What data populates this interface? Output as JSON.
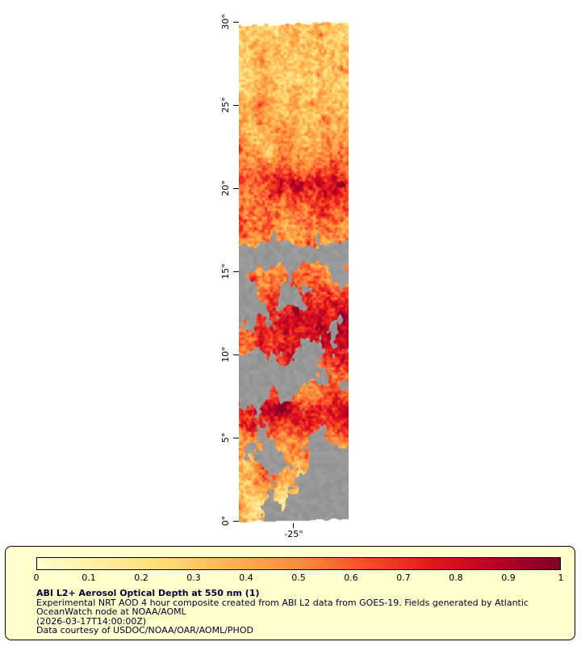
{
  "chart_data": {
    "type": "heatmap",
    "title": "ABI L2+ Aerosol Optical Depth at 550 nm (1)",
    "x_axis_ticks": [
      "-25°"
    ],
    "y_axis_ticks_top_to_bottom": [
      "30°",
      "25°",
      "20°",
      "15°",
      "10°",
      "5°",
      "0°"
    ],
    "colorbar": {
      "min": 0,
      "max": 1,
      "ticks": [
        "0",
        "0.1",
        "0.2",
        "0.3",
        "0.4",
        "0.5",
        "0.6",
        "0.7",
        "0.8",
        "0.9",
        "1"
      ]
    }
  },
  "map": {
    "y_axis_ticks": [
      "30°",
      "25°",
      "20°",
      "15°",
      "10°",
      "5°",
      "0°"
    ],
    "x_axis_tick": "-25°"
  },
  "colorbar": {
    "tick_labels": [
      "0",
      "0.1",
      "0.2",
      "0.3",
      "0.4",
      "0.5",
      "0.6",
      "0.7",
      "0.8",
      "0.9",
      "1"
    ],
    "gradient_stops": [
      "#ffffcc",
      "#ffeda0",
      "#fed976",
      "#feb24c",
      "#fd8d3c",
      "#fc4e2a",
      "#e31a1c",
      "#bd0026",
      "#800026"
    ]
  },
  "colors": {
    "panel_bg": "#ffffcc",
    "panel_border": "#000000",
    "caption_text": "#000033",
    "no_data_gray": "#9e9e9e",
    "page_bg": "#ffffff"
  },
  "caption": {
    "title": "ABI L2+ Aerosol Optical Depth at 550 nm (1)",
    "description_line1": "Experimental NRT AOD 4 hour composite created from ABI L2 data from GOES-19. Fields generated by Atlantic",
    "description_line2": "OceanWatch node at NOAA/AOML",
    "timestamp": "(2026-03-17T14:00:00Z)",
    "credit": "Data courtesy of USDOC/NOAA/OAR/AOML/PHOD"
  }
}
